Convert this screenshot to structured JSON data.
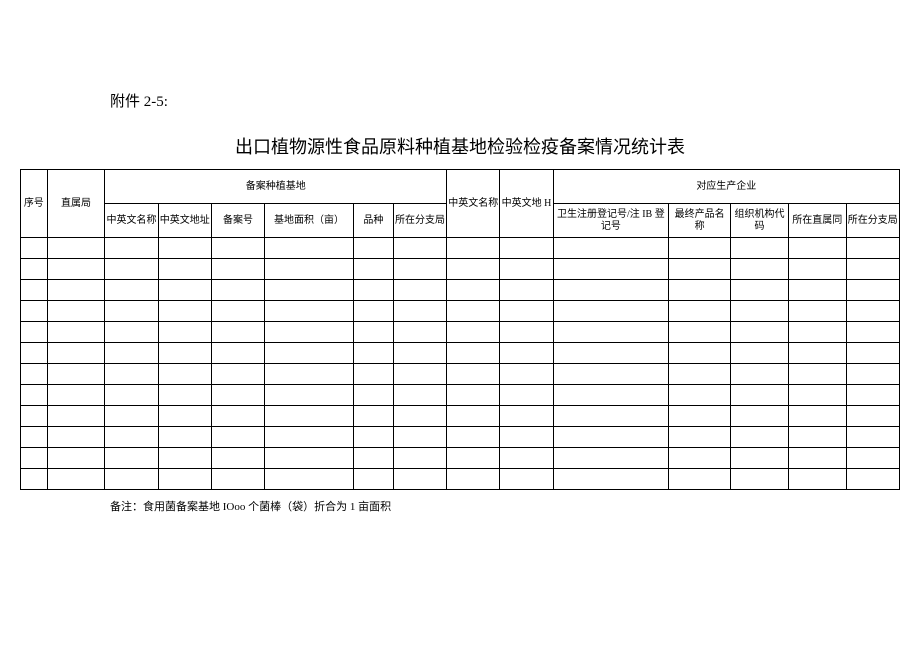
{
  "attachment_label": "附件 2-5:",
  "title": "出口植物源性食品原料种植基地检验检疫备案情况统计表",
  "header_top": {
    "col_seq": "序号",
    "col_bureau": "直属局",
    "group_base": "备案种植基地",
    "group_enterprise": "对应生产企业"
  },
  "header_sub": [
    "中英文名称",
    "中英文地址",
    "备案号",
    "基地面积（亩）",
    "品种",
    "所在分支局",
    "中英文名称",
    "中英文地 H",
    "卫生注册登记号/注 IB 登记号",
    "最终产品名称",
    "组织机构代码",
    "所在直属同",
    "所在分支局"
  ],
  "col_widths_pct": [
    3.0,
    6.5,
    6.0,
    6.0,
    6.0,
    10.0,
    4.5,
    6.0,
    6.0,
    6.0,
    13.0,
    7.0,
    6.5,
    6.5,
    6.0
  ],
  "empty_row_count": 12,
  "footnote": "备注：食用菌备案基地 IOoo 个菌棒（袋）折合为 1 亩面积",
  "colors": {
    "page_bg": "#ffffff",
    "text": "#000000",
    "border": "#000000"
  },
  "font_sizes_pt": {
    "attachment_label": 11,
    "title": 14,
    "table_cell": 7.5,
    "footnote": 8
  }
}
